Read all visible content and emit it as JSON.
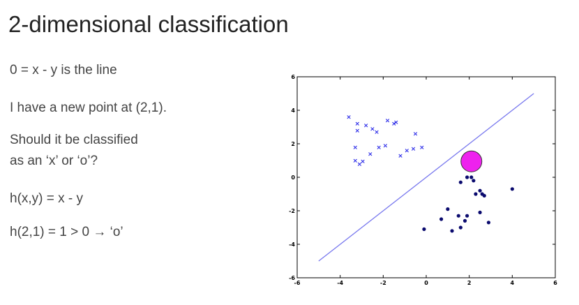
{
  "slide": {
    "title": "2-dimensional classification",
    "bullets": [
      "0 = x - y is the line",
      "I have a new point at (2,1).",
      "Should it be classified",
      "as an ‘x’ or ‘o’?",
      "h(x,y) = x - y",
      "h(2,1) = 1 > 0 → ‘o’"
    ]
  },
  "chart_data": {
    "type": "scatter",
    "xlim": [
      -6,
      6
    ],
    "ylim": [
      -6,
      6
    ],
    "x_ticks": [
      -6,
      -4,
      -2,
      0,
      2,
      4,
      6
    ],
    "y_ticks": [
      -6,
      -4,
      -2,
      0,
      2,
      4,
      6
    ],
    "grid": false,
    "colors": {
      "x_series": "#2a2ae8",
      "o_series": "#0a0a6e",
      "line": "#7777ee",
      "new_point": "#ee22ee"
    },
    "series": [
      {
        "marker": "x",
        "points": [
          [
            -3.6,
            3.6
          ],
          [
            -3.2,
            3.2
          ],
          [
            -2.8,
            3.1
          ],
          [
            -2.5,
            2.9
          ],
          [
            -2.3,
            2.7
          ],
          [
            -1.8,
            3.4
          ],
          [
            -1.5,
            3.2
          ],
          [
            -1.4,
            3.3
          ],
          [
            -0.5,
            2.6
          ],
          [
            -3.2,
            2.8
          ],
          [
            -3.3,
            1.8
          ],
          [
            -2.2,
            1.8
          ],
          [
            -1.9,
            1.9
          ],
          [
            -0.9,
            1.6
          ],
          [
            -0.6,
            1.7
          ],
          [
            -0.2,
            1.8
          ],
          [
            -3.3,
            1.0
          ],
          [
            -3.1,
            0.8
          ],
          [
            -2.6,
            1.4
          ],
          [
            -2.95,
            0.95
          ],
          [
            -1.2,
            1.3
          ]
        ]
      },
      {
        "marker": "o",
        "points": [
          [
            1.6,
            -0.3
          ],
          [
            1.9,
            0.0
          ],
          [
            2.1,
            0.0
          ],
          [
            2.5,
            -0.8
          ],
          [
            2.6,
            -1.0
          ],
          [
            2.7,
            -1.1
          ],
          [
            2.3,
            -1.0
          ],
          [
            4.0,
            -0.7
          ],
          [
            1.0,
            -1.9
          ],
          [
            0.7,
            -2.5
          ],
          [
            1.5,
            -2.3
          ],
          [
            1.9,
            -2.3
          ],
          [
            1.8,
            -2.6
          ],
          [
            2.5,
            -2.1
          ],
          [
            2.9,
            -2.7
          ],
          [
            -0.1,
            -3.1
          ],
          [
            1.2,
            -3.2
          ],
          [
            1.6,
            -3.0
          ],
          [
            2.2,
            -0.2
          ]
        ]
      }
    ],
    "decision_line": {
      "x": [
        -5,
        5
      ],
      "y": [
        -5,
        5
      ]
    },
    "new_point": {
      "x": 2.1,
      "y": 0.95
    }
  }
}
